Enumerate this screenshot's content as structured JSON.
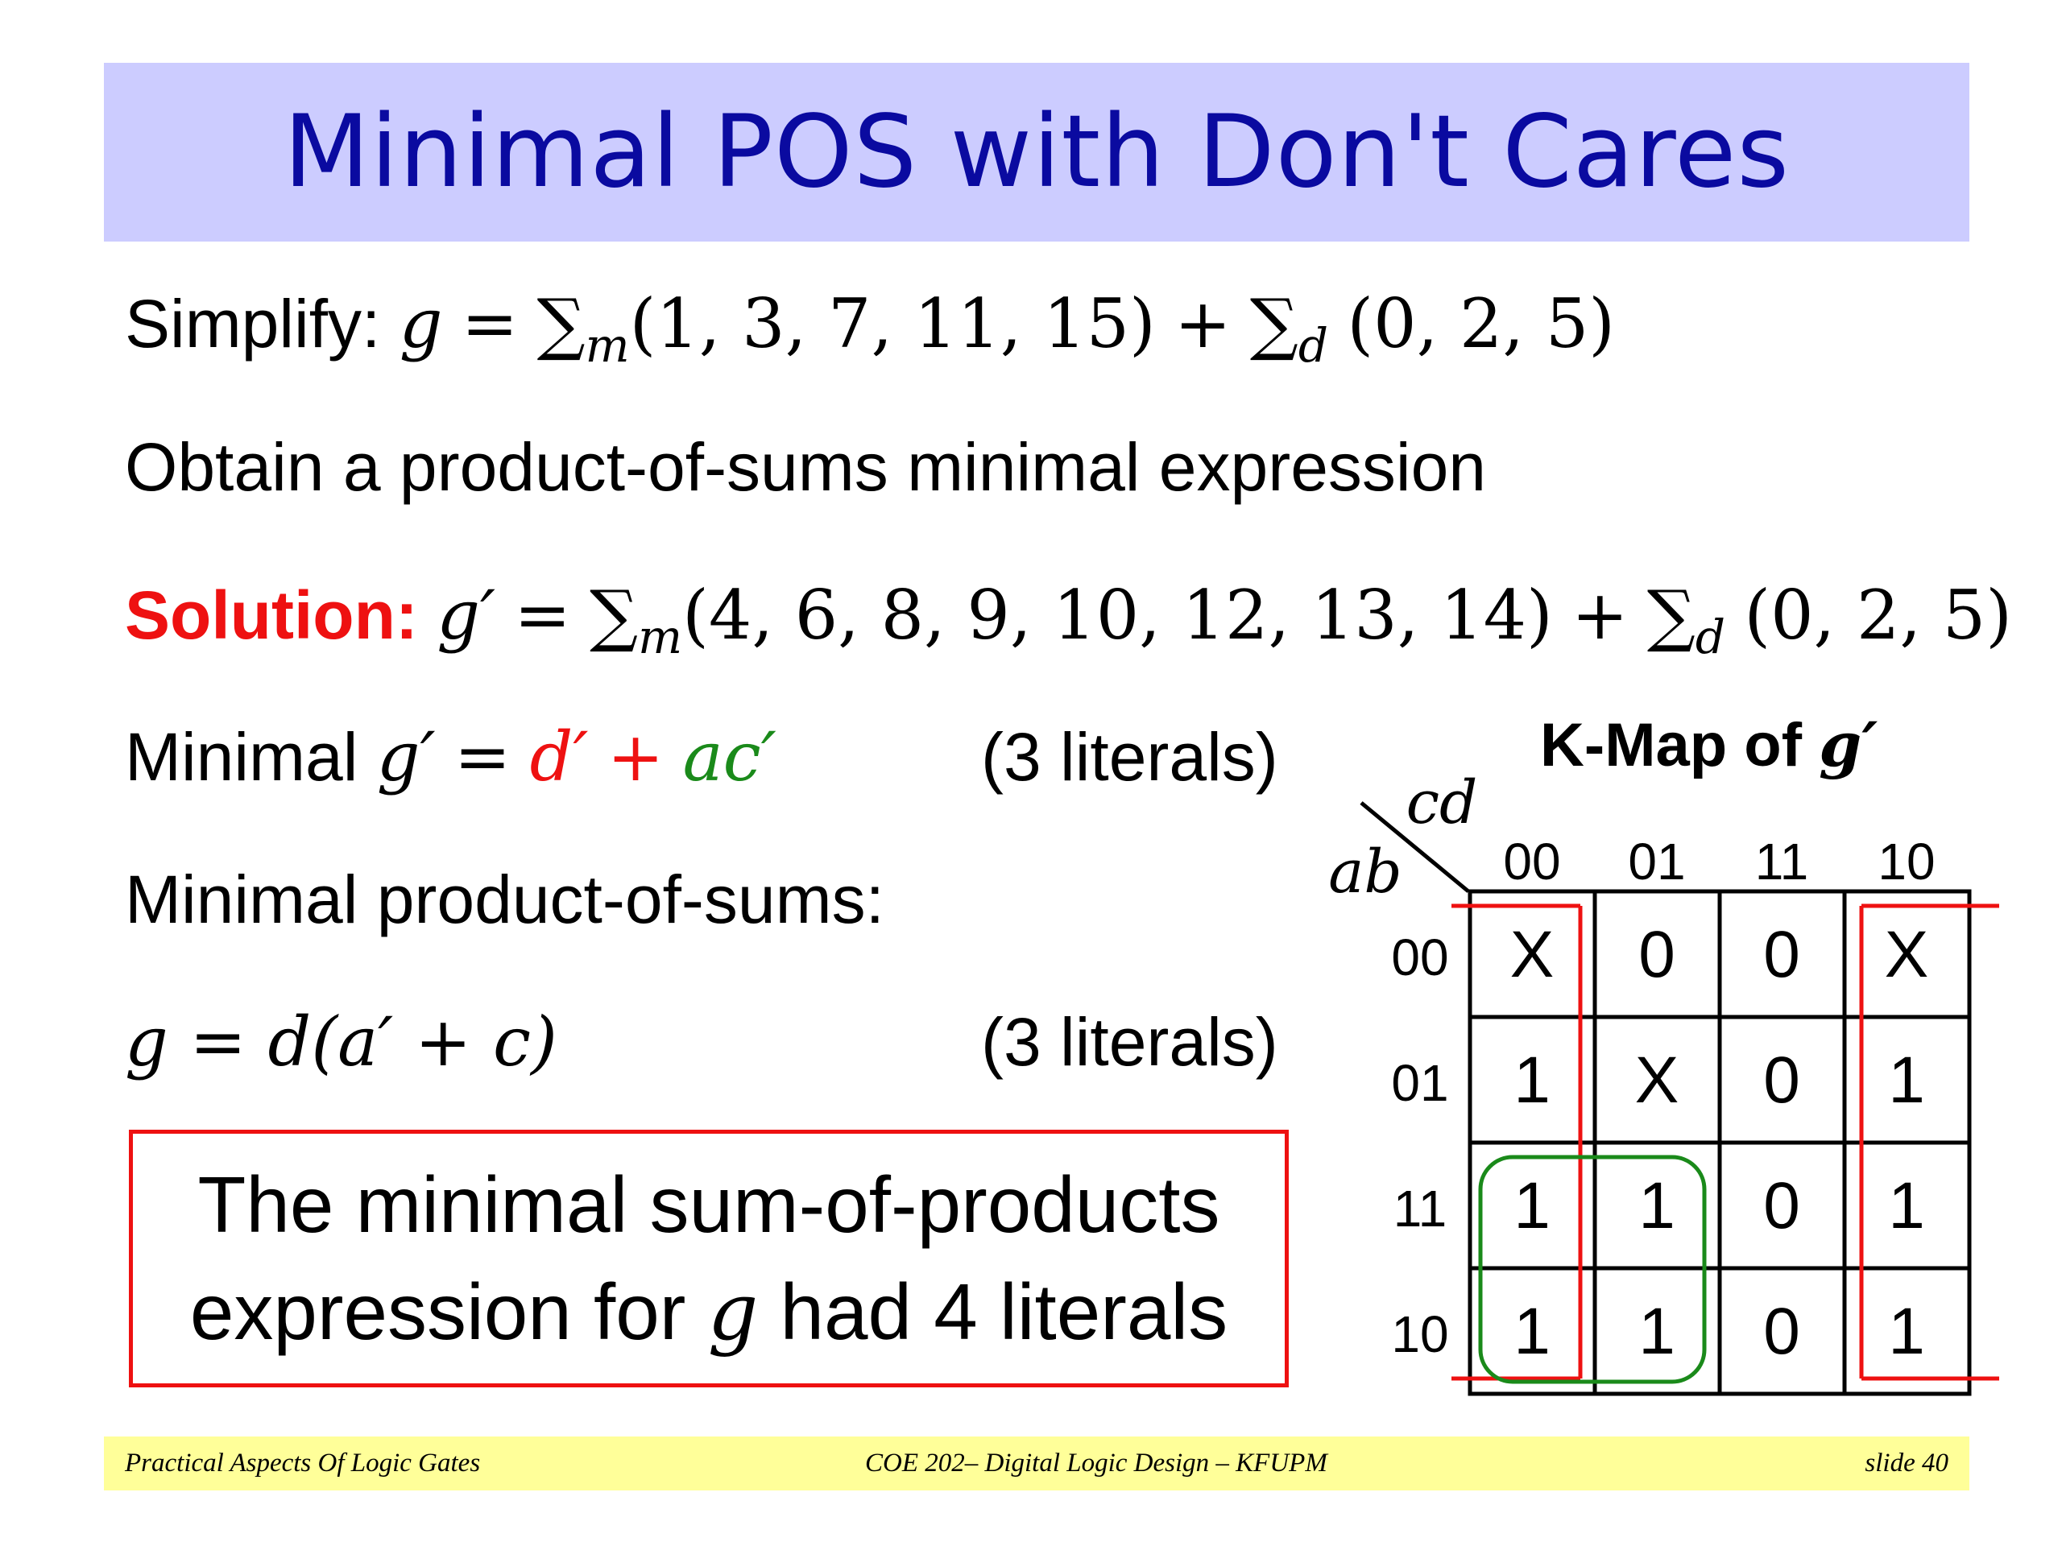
{
  "slide_title": "Minimal POS with Don't Cares",
  "simplify": {
    "label": "Simplify:",
    "lhs": "g",
    "eq": "=",
    "sum_m": "∑",
    "sub_m": "m",
    "minterms": "(1, 3, 7, 11, 15)",
    "plus": "+",
    "sum_d": "∑",
    "sub_d": "d",
    "dontcares": "(0, 2, 5)"
  },
  "instruction": "Obtain a product-of-sums minimal expression",
  "solution": {
    "label": "Solution:",
    "lhs": "g′",
    "eq": "=",
    "sum_m": "∑",
    "sub_m": "m",
    "minterms": "(4, 6, 8, 9, 10, 12, 13, 14)",
    "plus": "+",
    "sum_d": "∑",
    "sub_d": "d",
    "dontcares": "(0, 2, 5)"
  },
  "minimal_gprime": {
    "label": "Minimal",
    "lhs": "g′",
    "eq": "=",
    "term1": "d′",
    "plus": "+",
    "term2": "ac′",
    "literals": "(3 literals)"
  },
  "pos_heading": "Minimal product-of-sums:",
  "pos_result": {
    "expr": "g = d(a′ + c)",
    "literals": "(3 literals)"
  },
  "callout": {
    "line1": "The minimal sum-of-products",
    "line2_prefix": "expression for",
    "line2_var": "g",
    "line2_suffix": "had 4 literals"
  },
  "kmap": {
    "title_prefix": "K-Map of",
    "title_var": "g′",
    "col_var": "cd",
    "row_var": "ab",
    "col_labels": [
      "00",
      "01",
      "11",
      "10"
    ],
    "row_labels": [
      "00",
      "01",
      "11",
      "10"
    ],
    "cells": [
      [
        "X",
        "0",
        "0",
        "X"
      ],
      [
        "1",
        "X",
        "0",
        "1"
      ],
      [
        "1",
        "1",
        "0",
        "1"
      ],
      [
        "1",
        "1",
        "0",
        "1"
      ]
    ],
    "groups": [
      {
        "term": "d′",
        "color": "#ee1111"
      },
      {
        "term": "ac′",
        "color": "#1a8a1a"
      }
    ]
  },
  "footer": {
    "left": "Practical Aspects Of Logic Gates",
    "center": "COE 202– Digital Logic  Design – KFUPM",
    "right": "slide 40"
  },
  "colors": {
    "title_bg": "#ccccff",
    "title_text": "#0a0aa0",
    "accent_red": "#ee1111",
    "accent_green": "#1a8a1a",
    "footer_bg": "#ffff99"
  }
}
